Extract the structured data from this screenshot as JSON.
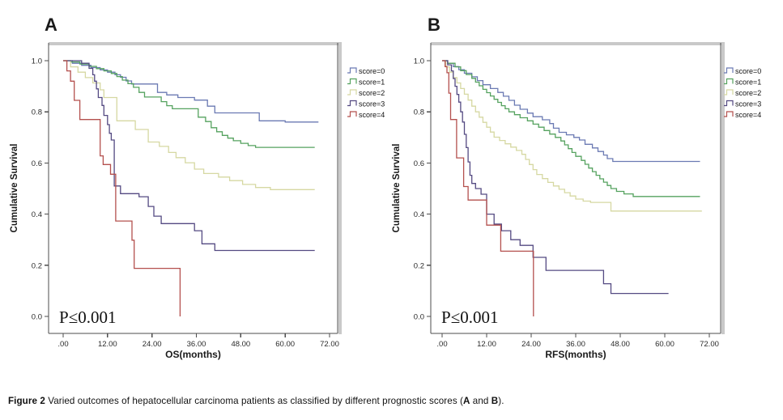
{
  "figure": {
    "caption": {
      "figure_label": "Figure 2",
      "text_main": " Varied outcomes of hepatocellular carcinoma patients as classified by different prognostic scores (",
      "panel_a": "A",
      "text_and": " and ",
      "panel_b": "B",
      "text_close": ")."
    }
  },
  "chart_data": [
    {
      "type": "line",
      "style": "kaplan-meier-step",
      "panel_label": "A",
      "xlabel": "OS(months)",
      "ylabel": "Cumulative Survival",
      "annotation": "P≤0.001",
      "xlim": [
        0,
        72
      ],
      "ylim": [
        0.0,
        1.0
      ],
      "xticks": [
        0,
        12,
        24,
        36,
        48,
        60,
        72
      ],
      "xtick_labels": [
        ".00",
        "12.00",
        "24.00",
        "36.00",
        "48.00",
        "60.00",
        "72.00"
      ],
      "yticks": [
        0.0,
        0.2,
        0.4,
        0.6,
        0.8,
        1.0
      ],
      "ytick_labels": [
        "0.0",
        "0.2",
        "0.4",
        "0.6",
        "0.8",
        "1.0"
      ],
      "grid": false,
      "legend_position": "outside-right-top",
      "series": [
        {
          "name": "score=0",
          "color": "#6b7ab3",
          "points": [
            [
              0,
              1.0
            ],
            [
              2.5,
              0.99
            ],
            [
              5,
              0.982
            ],
            [
              7.5,
              0.973
            ],
            [
              10,
              0.964
            ],
            [
              12,
              0.955
            ],
            [
              14,
              0.945
            ],
            [
              15.5,
              0.935
            ],
            [
              17,
              0.921
            ],
            [
              18.5,
              0.909
            ],
            [
              25.5,
              0.876
            ],
            [
              28,
              0.866
            ],
            [
              31,
              0.856
            ],
            [
              35.5,
              0.846
            ],
            [
              39,
              0.822
            ],
            [
              41,
              0.796
            ],
            [
              53,
              0.765
            ],
            [
              60,
              0.76
            ],
            [
              69,
              0.76
            ]
          ]
        },
        {
          "name": "score=1",
          "color": "#55a25f",
          "points": [
            [
              0,
              1.0
            ],
            [
              2,
              0.995
            ],
            [
              4.5,
              0.987
            ],
            [
              7,
              0.978
            ],
            [
              9,
              0.969
            ],
            [
              11,
              0.96
            ],
            [
              13,
              0.95
            ],
            [
              14.5,
              0.938
            ],
            [
              16,
              0.924
            ],
            [
              17.5,
              0.91
            ],
            [
              19,
              0.896
            ],
            [
              20.5,
              0.876
            ],
            [
              22,
              0.858
            ],
            [
              26.5,
              0.84
            ],
            [
              28,
              0.824
            ],
            [
              29.5,
              0.812
            ],
            [
              36.5,
              0.779
            ],
            [
              38.5,
              0.762
            ],
            [
              40,
              0.738
            ],
            [
              41.5,
              0.722
            ],
            [
              43,
              0.708
            ],
            [
              44.5,
              0.697
            ],
            [
              46,
              0.687
            ],
            [
              48,
              0.677
            ],
            [
              50,
              0.668
            ],
            [
              52,
              0.661
            ],
            [
              68,
              0.661
            ]
          ]
        },
        {
          "name": "score=2",
          "color": "#d6d8a2",
          "points": [
            [
              0,
              1.0
            ],
            [
              2,
              0.976
            ],
            [
              4,
              0.955
            ],
            [
              6,
              0.934
            ],
            [
              8,
              0.913
            ],
            [
              10,
              0.886
            ],
            [
              11,
              0.856
            ],
            [
              14.5,
              0.765
            ],
            [
              19.5,
              0.731
            ],
            [
              23,
              0.682
            ],
            [
              26,
              0.665
            ],
            [
              28.5,
              0.641
            ],
            [
              30.5,
              0.621
            ],
            [
              33,
              0.601
            ],
            [
              35.5,
              0.576
            ],
            [
              38,
              0.559
            ],
            [
              42,
              0.545
            ],
            [
              45,
              0.531
            ],
            [
              48.5,
              0.516
            ],
            [
              52,
              0.504
            ],
            [
              56,
              0.496
            ],
            [
              68,
              0.496
            ]
          ]
        },
        {
          "name": "score=3",
          "color": "#544a82",
          "points": [
            [
              0,
              1.0
            ],
            [
              5,
              0.99
            ],
            [
              7,
              0.97
            ],
            [
              8,
              0.945
            ],
            [
              8.5,
              0.92
            ],
            [
              9,
              0.89
            ],
            [
              9.5,
              0.856
            ],
            [
              10.5,
              0.825
            ],
            [
              11,
              0.786
            ],
            [
              12,
              0.75
            ],
            [
              12.5,
              0.716
            ],
            [
              13,
              0.69
            ],
            [
              13.8,
              0.51
            ],
            [
              15.5,
              0.48
            ],
            [
              20.5,
              0.468
            ],
            [
              23,
              0.43
            ],
            [
              24.5,
              0.392
            ],
            [
              26.5,
              0.363
            ],
            [
              35.5,
              0.335
            ],
            [
              37.5,
              0.284
            ],
            [
              41,
              0.258
            ],
            [
              68,
              0.258
            ]
          ]
        },
        {
          "name": "score=4",
          "color": "#b4504e",
          "points": [
            [
              0,
              1.0
            ],
            [
              1,
              0.96
            ],
            [
              2,
              0.92
            ],
            [
              3,
              0.845
            ],
            [
              4.5,
              0.77
            ],
            [
              10,
              0.628
            ],
            [
              10.8,
              0.594
            ],
            [
              12.8,
              0.556
            ],
            [
              14.2,
              0.373
            ],
            [
              18.6,
              0.298
            ],
            [
              19.2,
              0.188
            ],
            [
              31.6,
              0.0
            ]
          ]
        }
      ]
    },
    {
      "type": "line",
      "style": "kaplan-meier-step",
      "panel_label": "B",
      "xlabel": "RFS(months)",
      "ylabel": "Cumulative Survival",
      "annotation": "P≤0.001",
      "xlim": [
        0,
        72
      ],
      "ylim": [
        0.0,
        1.0
      ],
      "xticks": [
        0,
        12,
        24,
        36,
        48,
        60,
        72
      ],
      "xtick_labels": [
        ".00",
        "12.00",
        "24.00",
        "36.00",
        "48.00",
        "60.00",
        "72.00"
      ],
      "yticks": [
        0.0,
        0.2,
        0.4,
        0.6,
        0.8,
        1.0
      ],
      "ytick_labels": [
        "0.0",
        "0.2",
        "0.4",
        "0.6",
        "0.8",
        "1.0"
      ],
      "grid": false,
      "legend_position": "outside-right-top",
      "series": [
        {
          "name": "score=0",
          "color": "#6b7ab3",
          "points": [
            [
              0,
              1.0
            ],
            [
              1.5,
              0.99
            ],
            [
              3,
              0.977
            ],
            [
              4.5,
              0.965
            ],
            [
              6,
              0.951
            ],
            [
              8,
              0.937
            ],
            [
              9.5,
              0.922
            ],
            [
              11,
              0.906
            ],
            [
              13,
              0.891
            ],
            [
              15,
              0.876
            ],
            [
              16.5,
              0.861
            ],
            [
              18,
              0.845
            ],
            [
              19.5,
              0.826
            ],
            [
              21,
              0.81
            ],
            [
              23,
              0.795
            ],
            [
              24.5,
              0.781
            ],
            [
              27,
              0.769
            ],
            [
              29,
              0.754
            ],
            [
              30,
              0.736
            ],
            [
              31.5,
              0.72
            ],
            [
              33.5,
              0.71
            ],
            [
              35.5,
              0.7
            ],
            [
              37,
              0.69
            ],
            [
              38.5,
              0.673
            ],
            [
              40.5,
              0.659
            ],
            [
              42,
              0.645
            ],
            [
              43.5,
              0.631
            ],
            [
              44.5,
              0.617
            ],
            [
              46,
              0.606
            ],
            [
              69.5,
              0.606
            ]
          ]
        },
        {
          "name": "score=1",
          "color": "#55a25f",
          "points": [
            [
              0,
              1.0
            ],
            [
              1.5,
              0.99
            ],
            [
              3.5,
              0.976
            ],
            [
              5,
              0.961
            ],
            [
              6.5,
              0.946
            ],
            [
              8,
              0.931
            ],
            [
              9,
              0.916
            ],
            [
              10,
              0.902
            ],
            [
              11,
              0.888
            ],
            [
              12,
              0.875
            ],
            [
              13,
              0.862
            ],
            [
              14,
              0.849
            ],
            [
              15,
              0.837
            ],
            [
              16,
              0.824
            ],
            [
              17,
              0.812
            ],
            [
              18,
              0.8
            ],
            [
              19.5,
              0.789
            ],
            [
              21,
              0.777
            ],
            [
              23,
              0.765
            ],
            [
              24.5,
              0.752
            ],
            [
              26,
              0.74
            ],
            [
              27.5,
              0.727
            ],
            [
              29,
              0.713
            ],
            [
              30.5,
              0.7
            ],
            [
              32,
              0.686
            ],
            [
              33,
              0.671
            ],
            [
              34,
              0.656
            ],
            [
              35,
              0.641
            ],
            [
              36,
              0.626
            ],
            [
              37.5,
              0.61
            ],
            [
              38.5,
              0.595
            ],
            [
              39.5,
              0.58
            ],
            [
              40.5,
              0.566
            ],
            [
              41.5,
              0.552
            ],
            [
              42.5,
              0.538
            ],
            [
              43.5,
              0.525
            ],
            [
              44.5,
              0.512
            ],
            [
              45.5,
              0.5
            ],
            [
              47,
              0.489
            ],
            [
              49,
              0.479
            ],
            [
              51.5,
              0.469
            ],
            [
              69.5,
              0.469
            ]
          ]
        },
        {
          "name": "score=2",
          "color": "#d6d8a2",
          "points": [
            [
              0,
              1.0
            ],
            [
              1,
              0.976
            ],
            [
              2,
              0.955
            ],
            [
              3,
              0.934
            ],
            [
              4,
              0.913
            ],
            [
              5,
              0.891
            ],
            [
              6,
              0.869
            ],
            [
              7,
              0.846
            ],
            [
              8,
              0.822
            ],
            [
              9,
              0.8
            ],
            [
              10,
              0.779
            ],
            [
              11,
              0.759
            ],
            [
              12,
              0.74
            ],
            [
              13,
              0.721
            ],
            [
              14,
              0.701
            ],
            [
              15.5,
              0.688
            ],
            [
              17,
              0.675
            ],
            [
              18.5,
              0.662
            ],
            [
              20,
              0.649
            ],
            [
              21.5,
              0.634
            ],
            [
              22.5,
              0.614
            ],
            [
              23.5,
              0.594
            ],
            [
              24.5,
              0.574
            ],
            [
              25.5,
              0.555
            ],
            [
              27,
              0.539
            ],
            [
              28.5,
              0.524
            ],
            [
              30,
              0.51
            ],
            [
              31.5,
              0.497
            ],
            [
              33,
              0.484
            ],
            [
              34.5,
              0.471
            ],
            [
              36,
              0.459
            ],
            [
              38,
              0.451
            ],
            [
              40,
              0.446
            ],
            [
              45.5,
              0.412
            ],
            [
              70,
              0.412
            ]
          ]
        },
        {
          "name": "score=3",
          "color": "#544a82",
          "points": [
            [
              0,
              1.0
            ],
            [
              1.5,
              0.984
            ],
            [
              2.5,
              0.96
            ],
            [
              3,
              0.93
            ],
            [
              3.5,
              0.9
            ],
            [
              4,
              0.868
            ],
            [
              4.5,
              0.838
            ],
            [
              5,
              0.8
            ],
            [
              5.5,
              0.76
            ],
            [
              6,
              0.712
            ],
            [
              6.5,
              0.66
            ],
            [
              7,
              0.604
            ],
            [
              7.5,
              0.552
            ],
            [
              8,
              0.52
            ],
            [
              9,
              0.5
            ],
            [
              10.5,
              0.478
            ],
            [
              12,
              0.4
            ],
            [
              14,
              0.361
            ],
            [
              16,
              0.335
            ],
            [
              18.5,
              0.3
            ],
            [
              21,
              0.278
            ],
            [
              24.5,
              0.231
            ],
            [
              28,
              0.18
            ],
            [
              43.5,
              0.128
            ],
            [
              45.5,
              0.09
            ],
            [
              61,
              0.09
            ]
          ]
        },
        {
          "name": "score=4",
          "color": "#b4504e",
          "points": [
            [
              0,
              1.0
            ],
            [
              0.8,
              0.977
            ],
            [
              1.3,
              0.953
            ],
            [
              1.8,
              0.873
            ],
            [
              2.3,
              0.77
            ],
            [
              3.9,
              0.62
            ],
            [
              5.8,
              0.508
            ],
            [
              7,
              0.455
            ],
            [
              12,
              0.357
            ],
            [
              15.8,
              0.255
            ],
            [
              24.6,
              0.0
            ]
          ]
        }
      ]
    }
  ]
}
